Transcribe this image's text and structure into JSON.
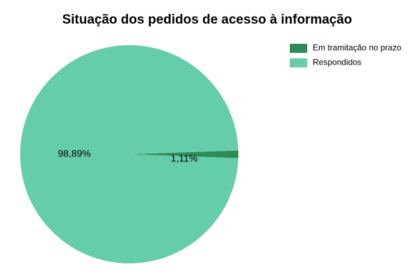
{
  "chart_data": {
    "type": "pie",
    "title": "Situação dos pedidos de acesso à informação",
    "categories": [
      "Em tramitação no prazo",
      "Respondidos"
    ],
    "values": [
      1.11,
      98.89
    ],
    "labels": [
      "1,11%",
      "98,89%"
    ],
    "colors": [
      "#2e8b57",
      "#66cdaa"
    ],
    "legend_position": "top-right"
  }
}
